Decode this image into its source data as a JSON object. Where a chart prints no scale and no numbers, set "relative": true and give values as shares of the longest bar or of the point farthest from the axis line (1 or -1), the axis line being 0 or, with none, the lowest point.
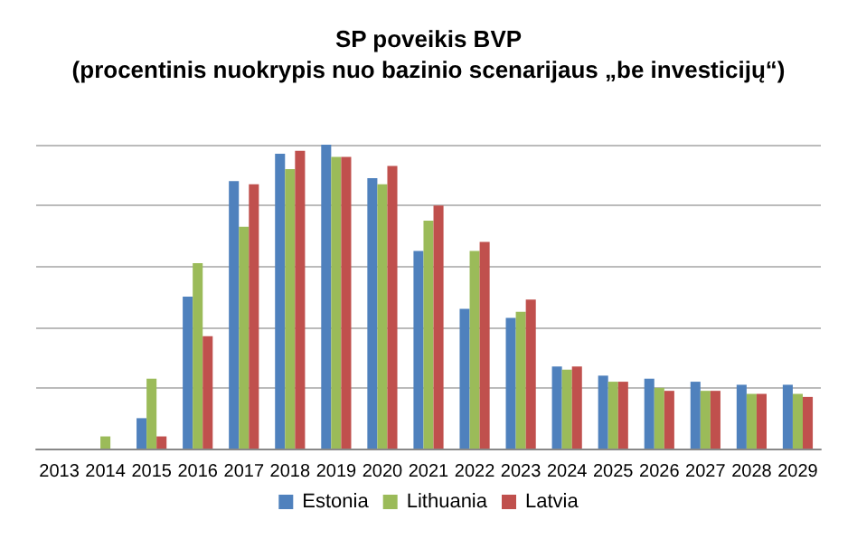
{
  "chart_data": {
    "type": "bar",
    "title": "SP poveikis BVP",
    "subtitle": "(procentinis nuokrypis nuo bazinio scenarijaus „be investicijų“)",
    "relative": true,
    "grid": "y",
    "legend": "bottom",
    "categories": [
      "2013",
      "2014",
      "2015",
      "2016",
      "2017",
      "2018",
      "2019",
      "2020",
      "2021",
      "2022",
      "2023",
      "2024",
      "2025",
      "2026",
      "2027",
      "2028",
      "2029"
    ],
    "series": [
      {
        "name": "Estonia",
        "color": "#4f81bd",
        "values": [
          0,
          0,
          0.1,
          0.5,
          0.88,
          0.97,
          1,
          0.89,
          0.65,
          0.46,
          0.43,
          0.27,
          0.24,
          0.23,
          0.22,
          0.21,
          0.21
        ]
      },
      {
        "name": "Lithuania",
        "color": "#9bbb59",
        "values": [
          0,
          0.04,
          0.23,
          0.61,
          0.73,
          0.92,
          0.96,
          0.87,
          0.75,
          0.65,
          0.45,
          0.26,
          0.22,
          0.2,
          0.19,
          0.18,
          0.18
        ]
      },
      {
        "name": "Latvia",
        "color": "#c0504d",
        "values": [
          0,
          0,
          0.04,
          0.37,
          0.87,
          0.98,
          0.96,
          0.93,
          0.8,
          0.68,
          0.49,
          0.27,
          0.22,
          0.19,
          0.19,
          0.18,
          0.17
        ]
      }
    ]
  }
}
